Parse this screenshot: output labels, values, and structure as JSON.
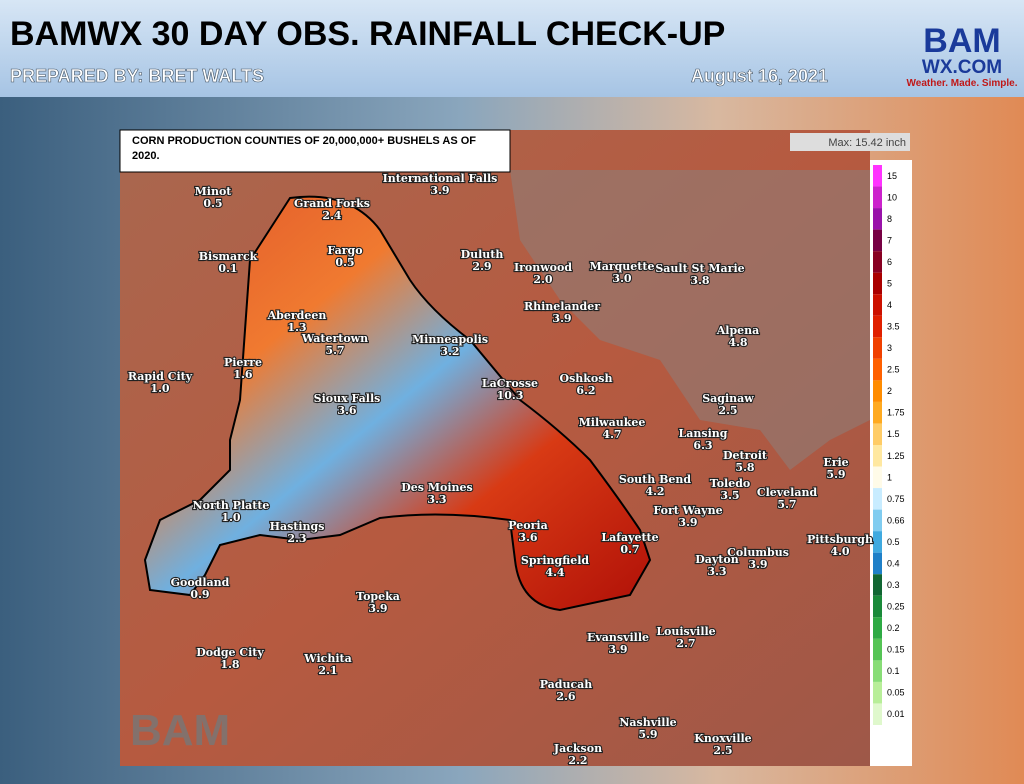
{
  "header": {
    "title": "BAMWX 30 DAY OBS. RAINFALL CHECK-UP",
    "prepared_by": "PREPARED BY:  BRET WALTS",
    "date": "August 16, 2021"
  },
  "logo": {
    "bam": "BAM",
    "wx": "WX.COM",
    "tagline": "Weather. Made. Simple."
  },
  "note": "CORN PRODUCTION COUNTIES OF 20,000,000+ BUSHELS AS OF 2020.",
  "max_label": "Max: 15.42 inch",
  "legend": [
    {
      "value": 15,
      "color": "#ff33ff"
    },
    {
      "value": 10,
      "color": "#cc22cc"
    },
    {
      "value": 8,
      "color": "#9911aa"
    },
    {
      "value": 7,
      "color": "#770044"
    },
    {
      "value": 6,
      "color": "#880022"
    },
    {
      "value": 5,
      "color": "#aa0000"
    },
    {
      "value": 4,
      "color": "#cc1100"
    },
    {
      "value": 3.5,
      "color": "#e02000"
    },
    {
      "value": 3,
      "color": "#f04000"
    },
    {
      "value": 2.5,
      "color": "#ff6000"
    },
    {
      "value": 2,
      "color": "#ff8c00"
    },
    {
      "value": 1.75,
      "color": "#ffaa20"
    },
    {
      "value": 1.5,
      "color": "#ffcc66"
    },
    {
      "value": 1.25,
      "color": "#ffe8a0"
    },
    {
      "value": 1,
      "color": "#fffbe8"
    },
    {
      "value": 0.75,
      "color": "#c8ecff"
    },
    {
      "value": 0.66,
      "color": "#80ccf0"
    },
    {
      "value": 0.5,
      "color": "#40aae0"
    },
    {
      "value": 0.4,
      "color": "#1f80c8"
    },
    {
      "value": 0.3,
      "color": "#116633"
    },
    {
      "value": 0.25,
      "color": "#1a8a3a"
    },
    {
      "value": 0.2,
      "color": "#2eaa44"
    },
    {
      "value": 0.15,
      "color": "#55c455"
    },
    {
      "value": 0.1,
      "color": "#88dd77"
    },
    {
      "value": 0.05,
      "color": "#b8ee99"
    },
    {
      "value": 0.01,
      "color": "#dff8cc"
    }
  ],
  "cities": [
    {
      "name": "International Falls",
      "value": "3.9"
    },
    {
      "name": "Minot",
      "value": "0.5"
    },
    {
      "name": "Grand Forks",
      "value": "2.4"
    },
    {
      "name": "Bismarck",
      "value": "0.1"
    },
    {
      "name": "Fargo",
      "value": "0.5"
    },
    {
      "name": "Duluth",
      "value": "2.9"
    },
    {
      "name": "Ironwood",
      "value": "2.0"
    },
    {
      "name": "Marquette",
      "value": "3.0"
    },
    {
      "name": "Sault St Marie",
      "value": "3.8"
    },
    {
      "name": "Aberdeen",
      "value": "1.3"
    },
    {
      "name": "Rhinelander",
      "value": "3.9"
    },
    {
      "name": "Watertown",
      "value": "5.7"
    },
    {
      "name": "Minneapolis",
      "value": "3.2"
    },
    {
      "name": "Alpena",
      "value": "4.8"
    },
    {
      "name": "Pierre",
      "value": "1.6"
    },
    {
      "name": "Rapid City",
      "value": "1.0"
    },
    {
      "name": "Oshkosh",
      "value": "6.2"
    },
    {
      "name": "LaCrosse",
      "value": "10.3"
    },
    {
      "name": "Saginaw",
      "value": "2.5"
    },
    {
      "name": "Sioux Falls",
      "value": "3.6"
    },
    {
      "name": "Milwaukee",
      "value": "4.7"
    },
    {
      "name": "Lansing",
      "value": "6.3"
    },
    {
      "name": "Detroit",
      "value": "5.8"
    },
    {
      "name": "South Bend",
      "value": "4.2"
    },
    {
      "name": "Toledo",
      "value": "3.5"
    },
    {
      "name": "Cleveland",
      "value": "5.7"
    },
    {
      "name": "Erie",
      "value": "5.9"
    },
    {
      "name": "Des Moines",
      "value": "3.3"
    },
    {
      "name": "North Platte",
      "value": "1.0"
    },
    {
      "name": "Fort Wayne",
      "value": "3.9"
    },
    {
      "name": "Hastings",
      "value": "2.3"
    },
    {
      "name": "Peoria",
      "value": "3.6"
    },
    {
      "name": "Lafayette",
      "value": "0.7"
    },
    {
      "name": "Springfield",
      "value": "4.4"
    },
    {
      "name": "Dayton",
      "value": "3.3"
    },
    {
      "name": "Columbus",
      "value": "3.9"
    },
    {
      "name": "Pittsburgh",
      "value": "4.0"
    },
    {
      "name": "Goodland",
      "value": "0.9"
    },
    {
      "name": "Topeka",
      "value": "3.9"
    },
    {
      "name": "Louisville",
      "value": "2.7"
    },
    {
      "name": "Evansville",
      "value": "3.9"
    },
    {
      "name": "Dodge City",
      "value": "1.8"
    },
    {
      "name": "Wichita",
      "value": "2.1"
    },
    {
      "name": "Paducah",
      "value": "2.6"
    },
    {
      "name": "Nashville",
      "value": "5.9"
    },
    {
      "name": "Knoxville",
      "value": "2.5"
    },
    {
      "name": "Jackson",
      "value": "2.2"
    }
  ]
}
